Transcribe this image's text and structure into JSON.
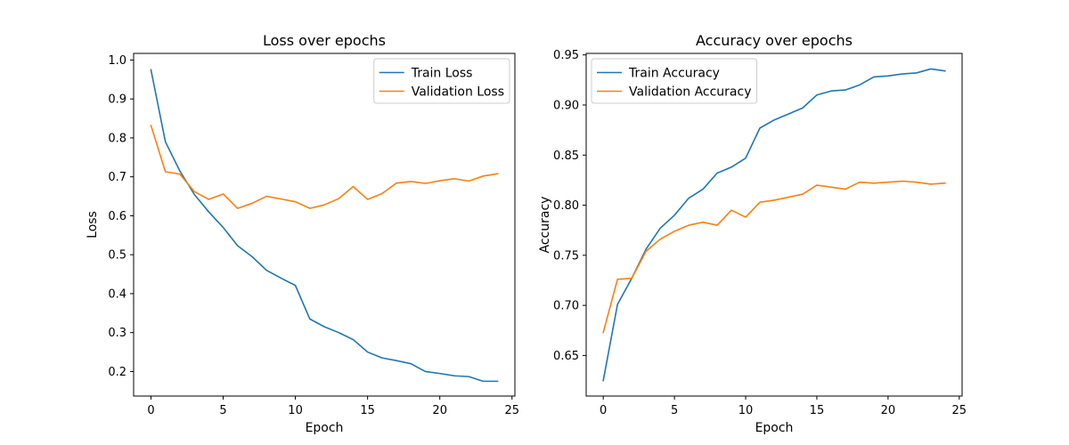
{
  "chart_data": [
    {
      "type": "line",
      "title": "Loss over epochs",
      "xlabel": "Epoch",
      "ylabel": "Loss",
      "xlim": [
        -1.2,
        25.2
      ],
      "ylim": [
        0.137,
        1.017
      ],
      "xticks": [
        0,
        5,
        10,
        15,
        20,
        25
      ],
      "yticks": [
        0.2,
        0.3,
        0.4,
        0.5,
        0.6,
        0.7,
        0.8,
        0.9,
        1.0
      ],
      "ytick_decimals": 1,
      "legend_position": "top-right",
      "x": [
        0,
        1,
        2,
        3,
        4,
        5,
        6,
        7,
        8,
        9,
        10,
        11,
        12,
        13,
        14,
        15,
        16,
        17,
        18,
        19,
        20,
        21,
        22,
        23,
        24
      ],
      "series": [
        {
          "name": "Train Loss",
          "color": "#1f77b4",
          "values": [
            0.975,
            0.79,
            0.715,
            0.655,
            0.61,
            0.57,
            0.523,
            0.495,
            0.46,
            0.44,
            0.421,
            0.335,
            0.315,
            0.3,
            0.282,
            0.25,
            0.235,
            0.228,
            0.22,
            0.2,
            0.195,
            0.189,
            0.187,
            0.175,
            0.175
          ]
        },
        {
          "name": "Validation Loss",
          "color": "#ff7f0e",
          "values": [
            0.832,
            0.713,
            0.707,
            0.662,
            0.642,
            0.656,
            0.619,
            0.632,
            0.65,
            0.643,
            0.636,
            0.619,
            0.628,
            0.644,
            0.675,
            0.642,
            0.657,
            0.684,
            0.688,
            0.683,
            0.69,
            0.695,
            0.689,
            0.702,
            0.708
          ]
        }
      ]
    },
    {
      "type": "line",
      "title": "Accuracy over epochs",
      "xlabel": "Epoch",
      "ylabel": "Accuracy",
      "xlim": [
        -1.2,
        25.2
      ],
      "ylim": [
        0.6095,
        0.9515
      ],
      "xticks": [
        0,
        5,
        10,
        15,
        20,
        25
      ],
      "yticks": [
        0.65,
        0.7,
        0.75,
        0.8,
        0.85,
        0.9,
        0.95
      ],
      "ytick_decimals": 2,
      "legend_position": "top-left",
      "x": [
        0,
        1,
        2,
        3,
        4,
        5,
        6,
        7,
        8,
        9,
        10,
        11,
        12,
        13,
        14,
        15,
        16,
        17,
        18,
        19,
        20,
        21,
        22,
        23,
        24
      ],
      "series": [
        {
          "name": "Train Accuracy",
          "color": "#1f77b4",
          "values": [
            0.625,
            0.701,
            0.727,
            0.756,
            0.777,
            0.79,
            0.807,
            0.816,
            0.832,
            0.838,
            0.847,
            0.877,
            0.885,
            0.891,
            0.897,
            0.91,
            0.914,
            0.915,
            0.92,
            0.928,
            0.929,
            0.931,
            0.932,
            0.936,
            0.934
          ]
        },
        {
          "name": "Validation Accuracy",
          "color": "#ff7f0e",
          "values": [
            0.673,
            0.726,
            0.727,
            0.754,
            0.766,
            0.774,
            0.78,
            0.783,
            0.78,
            0.795,
            0.788,
            0.803,
            0.805,
            0.808,
            0.811,
            0.82,
            0.818,
            0.816,
            0.823,
            0.822,
            0.823,
            0.824,
            0.823,
            0.821,
            0.822
          ]
        }
      ]
    }
  ]
}
